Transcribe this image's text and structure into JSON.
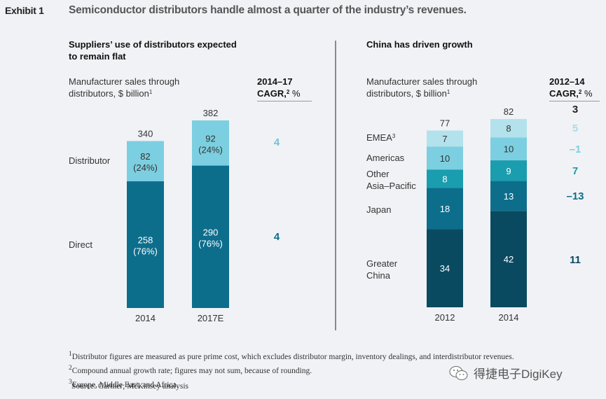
{
  "header": {
    "exhibit": "Exhibit 1",
    "title": "Semiconductor distributors handle almost a quarter of the industry’s revenues."
  },
  "left": {
    "subtitle_line1": "Suppliers’ use of distributors expected",
    "subtitle_line2": "to remain flat",
    "unit_line1": "Manufacturer sales through",
    "unit_line2": "distributors, $ billion",
    "unit_note": "1",
    "cagr_line1": "2014–17",
    "cagr_line2": "CAGR,",
    "cagr_note": "2",
    "cagr_pct": " %",
    "row_labels": [
      "Distributor",
      "Direct"
    ],
    "cagr_values": [
      "4",
      "4"
    ]
  },
  "right": {
    "subtitle": "China has driven growth",
    "unit_line1": "Manufacturer sales through",
    "unit_line2": "distributors, $ billion",
    "unit_note": "1",
    "cagr_line1": "2012–14",
    "cagr_line2": "CAGR,",
    "cagr_note": "2",
    "cagr_pct": " %",
    "total_cagr": "3",
    "row_labels": {
      "emea": "EMEA",
      "emea_note": "3",
      "americas": "Americas",
      "other1": "Other",
      "other2": "Asia–Pacific",
      "japan": "Japan",
      "china1": "Greater",
      "china2": "China"
    },
    "cagr_values": [
      "5",
      "–1",
      "7",
      "–13",
      "11"
    ]
  },
  "chart_data": [
    {
      "type": "bar",
      "stacked": true,
      "title": "Suppliers’ use of distributors expected to remain flat",
      "ylabel": "Manufacturer sales through distributors, $ billion",
      "categories": [
        "2014",
        "2017E"
      ],
      "series": [
        {
          "name": "Direct",
          "values": [
            258,
            290
          ],
          "labels": [
            "(76%)",
            "(76%)"
          ],
          "color": "#0d6e8c",
          "cagr": "4"
        },
        {
          "name": "Distributor",
          "values": [
            82,
            92
          ],
          "labels": [
            "(24%)",
            "(24%)"
          ],
          "color": "#7ccfe0",
          "cagr": "4"
        }
      ],
      "totals": [
        340,
        382
      ],
      "cagr_header": "2014–17 CAGR, %",
      "ylim": [
        0,
        382
      ]
    },
    {
      "type": "bar",
      "stacked": true,
      "title": "China has driven growth",
      "ylabel": "Manufacturer sales through distributors, $ billion",
      "categories": [
        "2012",
        "2014"
      ],
      "series": [
        {
          "name": "Greater China",
          "values": [
            34,
            42
          ],
          "color": "#0a4a61",
          "cagr": "11"
        },
        {
          "name": "Japan",
          "values": [
            18,
            13
          ],
          "color": "#0d6e8c",
          "cagr": "–13"
        },
        {
          "name": "Other Asia–Pacific",
          "values": [
            8,
            9
          ],
          "color": "#1a9dae",
          "cagr": "7"
        },
        {
          "name": "Americas",
          "values": [
            10,
            10
          ],
          "color": "#7ccfe0",
          "cagr": "–1"
        },
        {
          "name": "EMEA",
          "values": [
            7,
            8
          ],
          "color": "#b3e2ec",
          "cagr": "5"
        }
      ],
      "totals": [
        77,
        82
      ],
      "total_cagr": "3",
      "cagr_header": "2012–14 CAGR, %",
      "ylim": [
        0,
        82
      ]
    }
  ],
  "footnotes": [
    "Distributor figures are measured as pure prime cost, which excludes distributor margin, inventory dealings, and interdistributor revenues.",
    "Compound annual growth rate; figures may not sum, because of rounding.",
    "Europe, Middle East, and Africa."
  ],
  "footnote_marks": [
    "1",
    "2",
    "3"
  ],
  "source": "Source: Gartner; McKinsey analysis",
  "watermark": "得捷电子DigiKey",
  "colors": {
    "background": "#f1f2f5",
    "direct": "#0d6e8c",
    "distributor": "#7ccfe0",
    "china": "#0a4a61",
    "other_apac": "#1a9dae",
    "emea": "#b3e2ec"
  }
}
